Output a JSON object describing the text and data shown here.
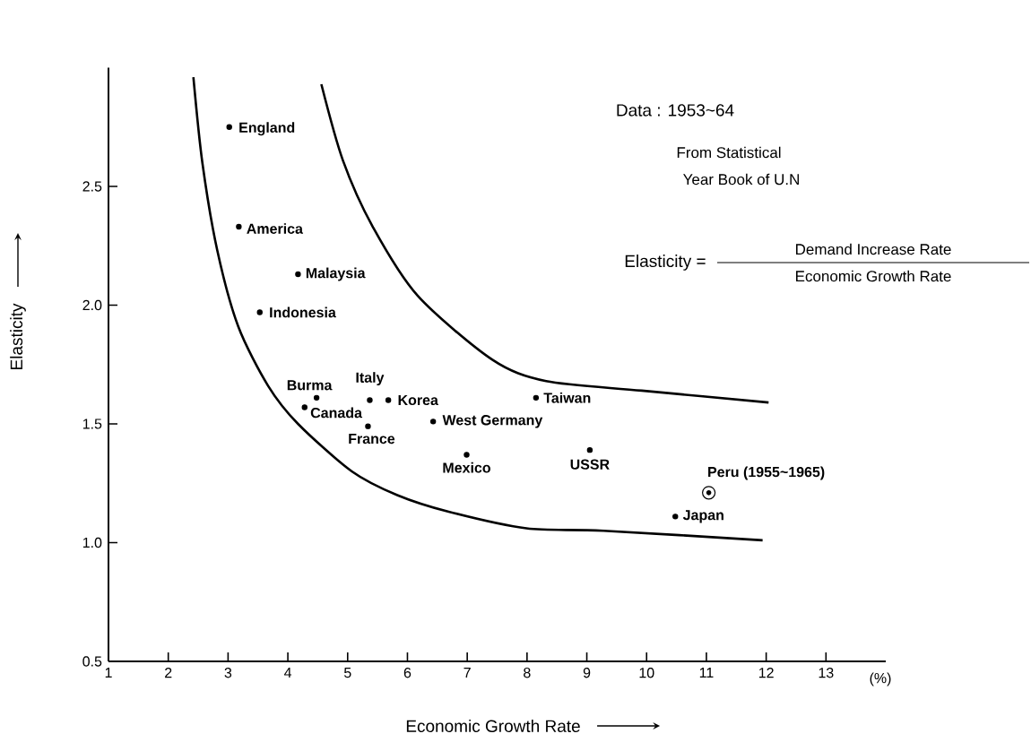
{
  "chart_data": {
    "type": "scatter",
    "xlabel": "Economic Growth Rate",
    "ylabel": "Elasticity",
    "xlim": [
      1,
      14
    ],
    "ylim": [
      0.5,
      3.0
    ],
    "xticks": [
      1,
      2,
      3,
      4,
      5,
      6,
      7,
      8,
      9,
      10,
      11,
      12,
      13
    ],
    "yticks": [
      {
        "value": 0.5,
        "label": "0.5"
      },
      {
        "value": 1.0,
        "label": "1.0"
      },
      {
        "value": 1.5,
        "label": "1.5"
      },
      {
        "value": 2.0,
        "label": "2.0"
      },
      {
        "value": 2.5,
        "label": "2.5"
      }
    ],
    "marker": "circle",
    "series": [
      {
        "type": "scatter",
        "color": "#000000",
        "x": [
          3.02,
          3.18,
          4.17,
          3.53,
          4.48,
          4.28,
          5.37,
          5.68,
          5.34,
          6.43,
          6.99,
          8.15,
          9.05,
          10.48
        ],
        "values": [
          2.75,
          2.33,
          2.13,
          1.97,
          1.61,
          1.57,
          1.6,
          1.6,
          1.49,
          1.51,
          1.37,
          1.61,
          1.39,
          1.11
        ]
      },
      {
        "type": "scatter",
        "color": "#000000",
        "x": [
          11.04
        ],
        "values": [
          1.21
        ]
      },
      {
        "type": "line",
        "color": "#000000",
        "marker": "none",
        "line_style": "solid",
        "x": [
          2.42,
          2.57,
          2.82,
          3.17,
          3.67,
          4.17,
          5.07,
          5.83,
          6.69,
          7.99,
          9.28,
          11.94
        ],
        "values": [
          2.96,
          2.6,
          2.23,
          1.91,
          1.66,
          1.5,
          1.3,
          1.2,
          1.13,
          1.06,
          1.05,
          1.01
        ]
      },
      {
        "type": "line",
        "color": "#000000",
        "marker": "none",
        "line_style": "solid",
        "x": [
          4.56,
          4.92,
          5.42,
          6.17,
          7.42,
          8.32,
          9.92,
          12.04
        ],
        "values": [
          2.93,
          2.61,
          2.33,
          2.04,
          1.77,
          1.68,
          1.64,
          1.59
        ]
      }
    ],
    "annotations": [
      {
        "text": "England",
        "x": 3.02,
        "y": 2.75
      },
      {
        "text": "America",
        "x": 3.18,
        "y": 2.33
      },
      {
        "text": "Malaysia",
        "x": 4.17,
        "y": 2.13
      },
      {
        "text": "Indonesia",
        "x": 3.53,
        "y": 1.97
      },
      {
        "text": "Burma",
        "x": 4.48,
        "y": 1.61
      },
      {
        "text": "Canada",
        "x": 4.28,
        "y": 1.57
      },
      {
        "text": "Italy",
        "x": 5.37,
        "y": 1.6
      },
      {
        "text": "Korea",
        "x": 5.68,
        "y": 1.6
      },
      {
        "text": "France",
        "x": 5.34,
        "y": 1.49
      },
      {
        "text": "West Germany",
        "x": 6.43,
        "y": 1.51
      },
      {
        "text": "Mexico",
        "x": 6.99,
        "y": 1.37
      },
      {
        "text": "Taiwan",
        "x": 8.15,
        "y": 1.61
      },
      {
        "text": "USSR",
        "x": 9.05,
        "y": 1.39
      },
      {
        "text": "Peru (1955~1965)",
        "x": 11.04,
        "y": 1.21
      },
      {
        "text": "Japan",
        "x": 10.48,
        "y": 1.11
      },
      "Data : 1953~64",
      "From Statistical",
      "Year Book of U.N",
      "Elasticity =",
      "Demand Increase Rate",
      "Economic Growth Rate",
      "(%)"
    ]
  }
}
